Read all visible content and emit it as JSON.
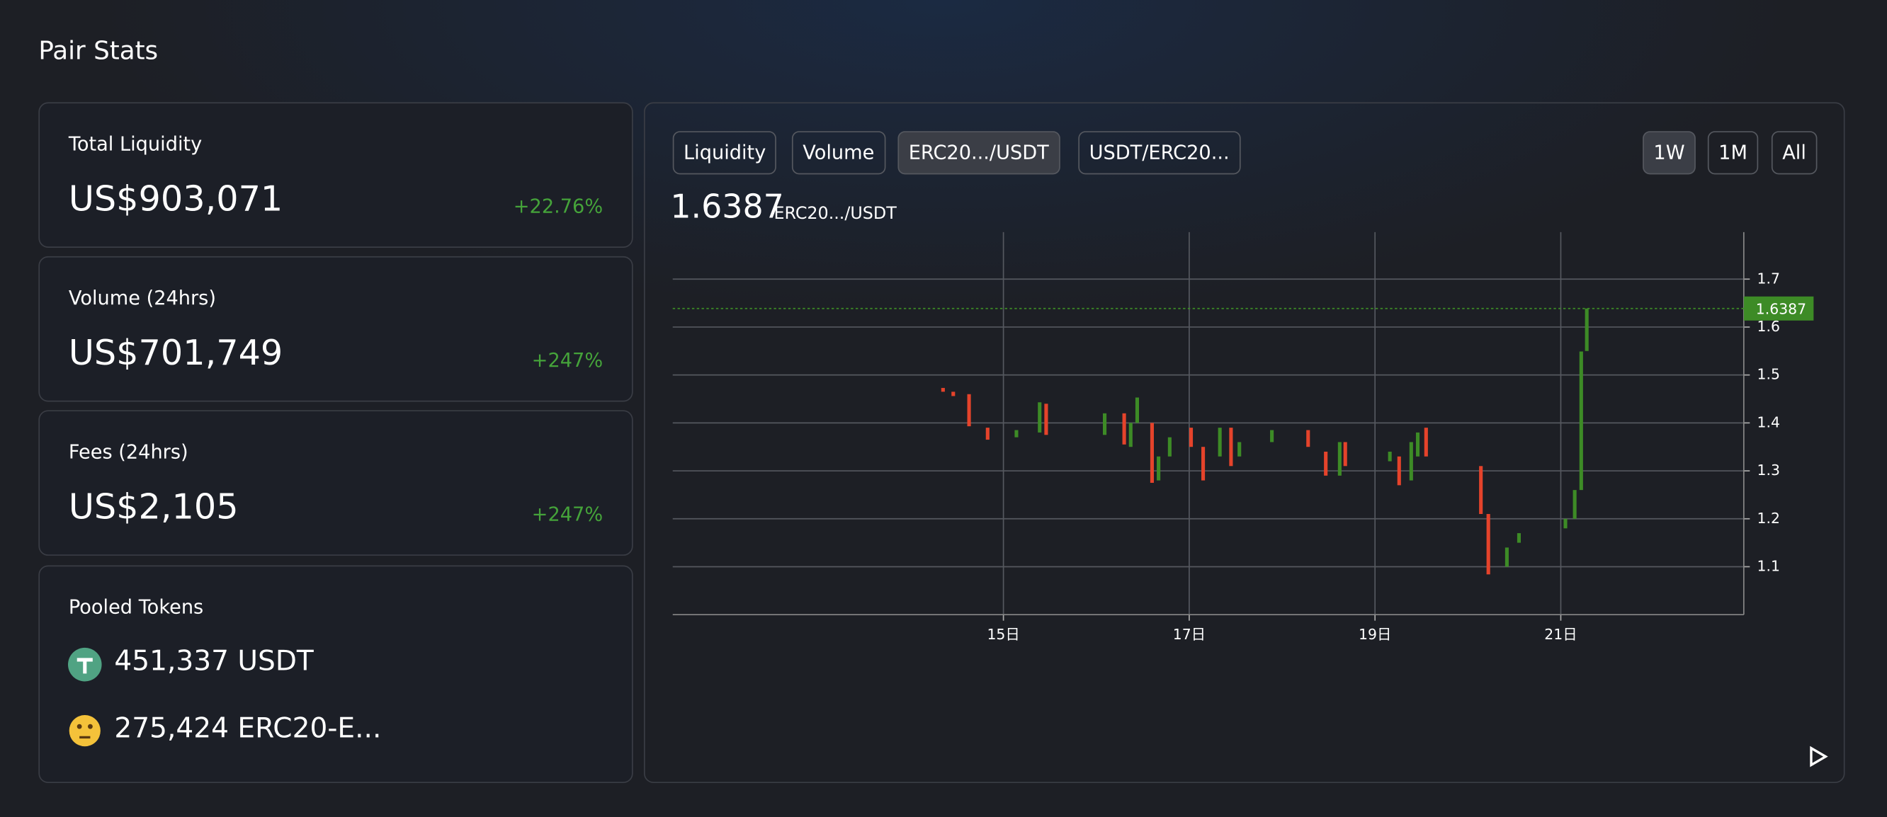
{
  "header": {
    "title": "Pair Stats"
  },
  "stats": [
    {
      "label": "Total Liquidity",
      "value": "US$903,071",
      "change": "+22.76%"
    },
    {
      "label": "Volume (24hrs)",
      "value": "US$701,749",
      "change": "+247%"
    },
    {
      "label": "Fees (24hrs)",
      "value": "US$2,105",
      "change": "+247%"
    }
  ],
  "pooled": {
    "title": "Pooled Tokens",
    "tokens": [
      "451,337 USDT",
      "275,424 ERC20-E..."
    ]
  },
  "tabs": {
    "items": [
      "Liquidity",
      "Volume",
      "ERC20.../USDT",
      "USDT/ERC20..."
    ],
    "active": 2
  },
  "ranges": {
    "items": [
      "1W",
      "1M",
      "All"
    ],
    "active": 0
  },
  "chart_data": {
    "type": "candlestick",
    "up_color": "#3d8b26",
    "down_color": "#e5432b",
    "grid": true,
    "x": [
      14.35,
      14.46,
      14.63,
      14.83,
      15.14,
      15.39,
      15.46,
      16.09,
      16.3,
      16.37,
      16.44,
      16.6,
      16.67,
      16.79,
      17.02,
      17.15,
      17.33,
      17.45,
      17.54,
      17.89,
      18.28,
      18.47,
      18.62,
      18.68,
      19.16,
      19.26,
      19.39,
      19.46,
      19.55,
      20.14,
      20.22,
      20.42,
      20.55,
      21.05,
      21.15,
      21.22,
      21.28
    ],
    "open": [
      1.473,
      1.465,
      1.46,
      1.39,
      1.37,
      1.38,
      1.44,
      1.375,
      1.42,
      1.35,
      1.4,
      1.4,
      1.28,
      1.33,
      1.39,
      1.35,
      1.33,
      1.39,
      1.33,
      1.36,
      1.385,
      1.34,
      1.29,
      1.36,
      1.32,
      1.33,
      1.28,
      1.33,
      1.39,
      1.31,
      1.21,
      1.1,
      1.15,
      1.18,
      1.2,
      1.26,
      1.55
    ],
    "close": [
      1.465,
      1.456,
      1.393,
      1.365,
      1.385,
      1.443,
      1.375,
      1.42,
      1.355,
      1.4,
      1.453,
      1.275,
      1.33,
      1.37,
      1.35,
      1.28,
      1.39,
      1.31,
      1.36,
      1.385,
      1.35,
      1.29,
      1.36,
      1.31,
      1.34,
      1.27,
      1.36,
      1.38,
      1.33,
      1.21,
      1.084,
      1.14,
      1.17,
      1.2,
      1.26,
      1.549,
      1.6387
    ],
    "last_value": 1.6387,
    "xlim": [
      11.44,
      22.97
    ],
    "xticks": [
      {
        "value": 15,
        "label": "15日"
      },
      {
        "value": 17,
        "label": "17日"
      },
      {
        "value": 19,
        "label": "19日"
      },
      {
        "value": 21,
        "label": "21日"
      }
    ],
    "ylim": [
      1.0,
      1.798
    ],
    "yticks": [
      1.1,
      1.2,
      1.3,
      1.4,
      1.5,
      1.6,
      1.7
    ]
  }
}
